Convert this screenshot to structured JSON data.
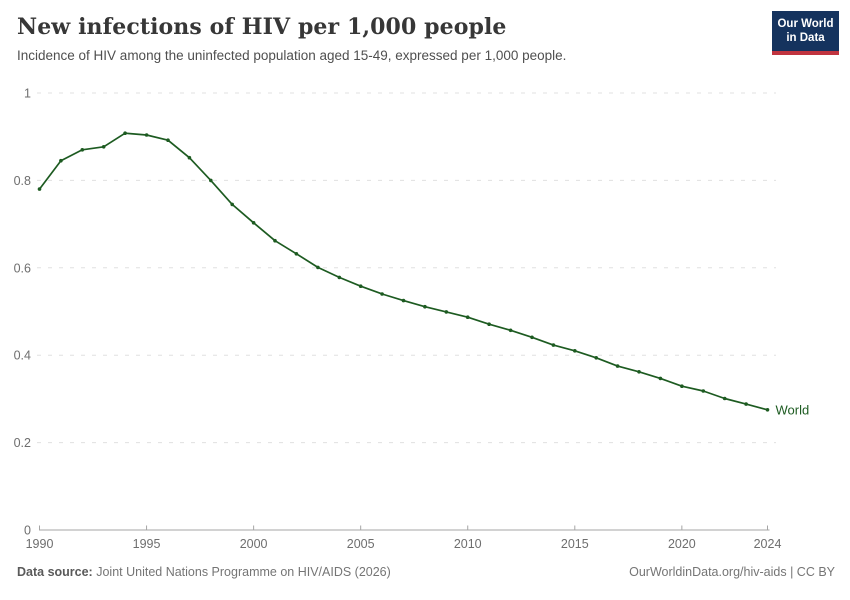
{
  "header": {
    "title": "New infections of HIV per 1,000 people",
    "subtitle": "Incidence of HIV among the uninfected population aged 15-49, expressed per 1,000 people.",
    "logo": {
      "line1": "Our World",
      "line2": "in Data"
    }
  },
  "chart_data": {
    "type": "line",
    "title": "New infections of HIV per 1,000 people",
    "xlabel": "",
    "ylabel": "",
    "xlim": [
      1990,
      2024
    ],
    "ylim": [
      0,
      1
    ],
    "x_ticks": [
      1990,
      1995,
      2000,
      2005,
      2010,
      2015,
      2020,
      2024
    ],
    "y_ticks": [
      0,
      0.2,
      0.4,
      0.6,
      0.8,
      1
    ],
    "grid": "horizontal-dashed",
    "legend_position": "end-of-line",
    "x": [
      1990,
      1991,
      1992,
      1993,
      1994,
      1995,
      1996,
      1997,
      1998,
      1999,
      2000,
      2001,
      2002,
      2003,
      2004,
      2005,
      2006,
      2007,
      2008,
      2009,
      2010,
      2011,
      2012,
      2013,
      2014,
      2015,
      2016,
      2017,
      2018,
      2019,
      2020,
      2021,
      2022,
      2023,
      2024
    ],
    "series": [
      {
        "name": "World",
        "color": "#1d5b21",
        "values": [
          0.78,
          0.845,
          0.87,
          0.877,
          0.908,
          0.904,
          0.892,
          0.852,
          0.8,
          0.745,
          0.703,
          0.662,
          0.632,
          0.601,
          0.578,
          0.558,
          0.54,
          0.525,
          0.511,
          0.499,
          0.487,
          0.471,
          0.457,
          0.441,
          0.423,
          0.41,
          0.394,
          0.375,
          0.362,
          0.347,
          0.329,
          0.318,
          0.301,
          0.288,
          0.275
        ]
      }
    ]
  },
  "footer": {
    "source_label": "Data source:",
    "source_text": "Joint United Nations Programme on HIV/AIDS (2026)",
    "rights": "OurWorldinData.org/hiv-aids | CC BY"
  },
  "colors": {
    "background": "#ffffff",
    "title_text": "#373737",
    "subtitle_text": "#4f4f4f",
    "axis_text": "#6e6e6e",
    "gridline": "#e0e0e0",
    "axis_line": "#a5a5a5",
    "series_green": "#1d5b21",
    "logo_background": "#15335e",
    "logo_accent": "#c0343f",
    "footer_text": "#757575"
  }
}
